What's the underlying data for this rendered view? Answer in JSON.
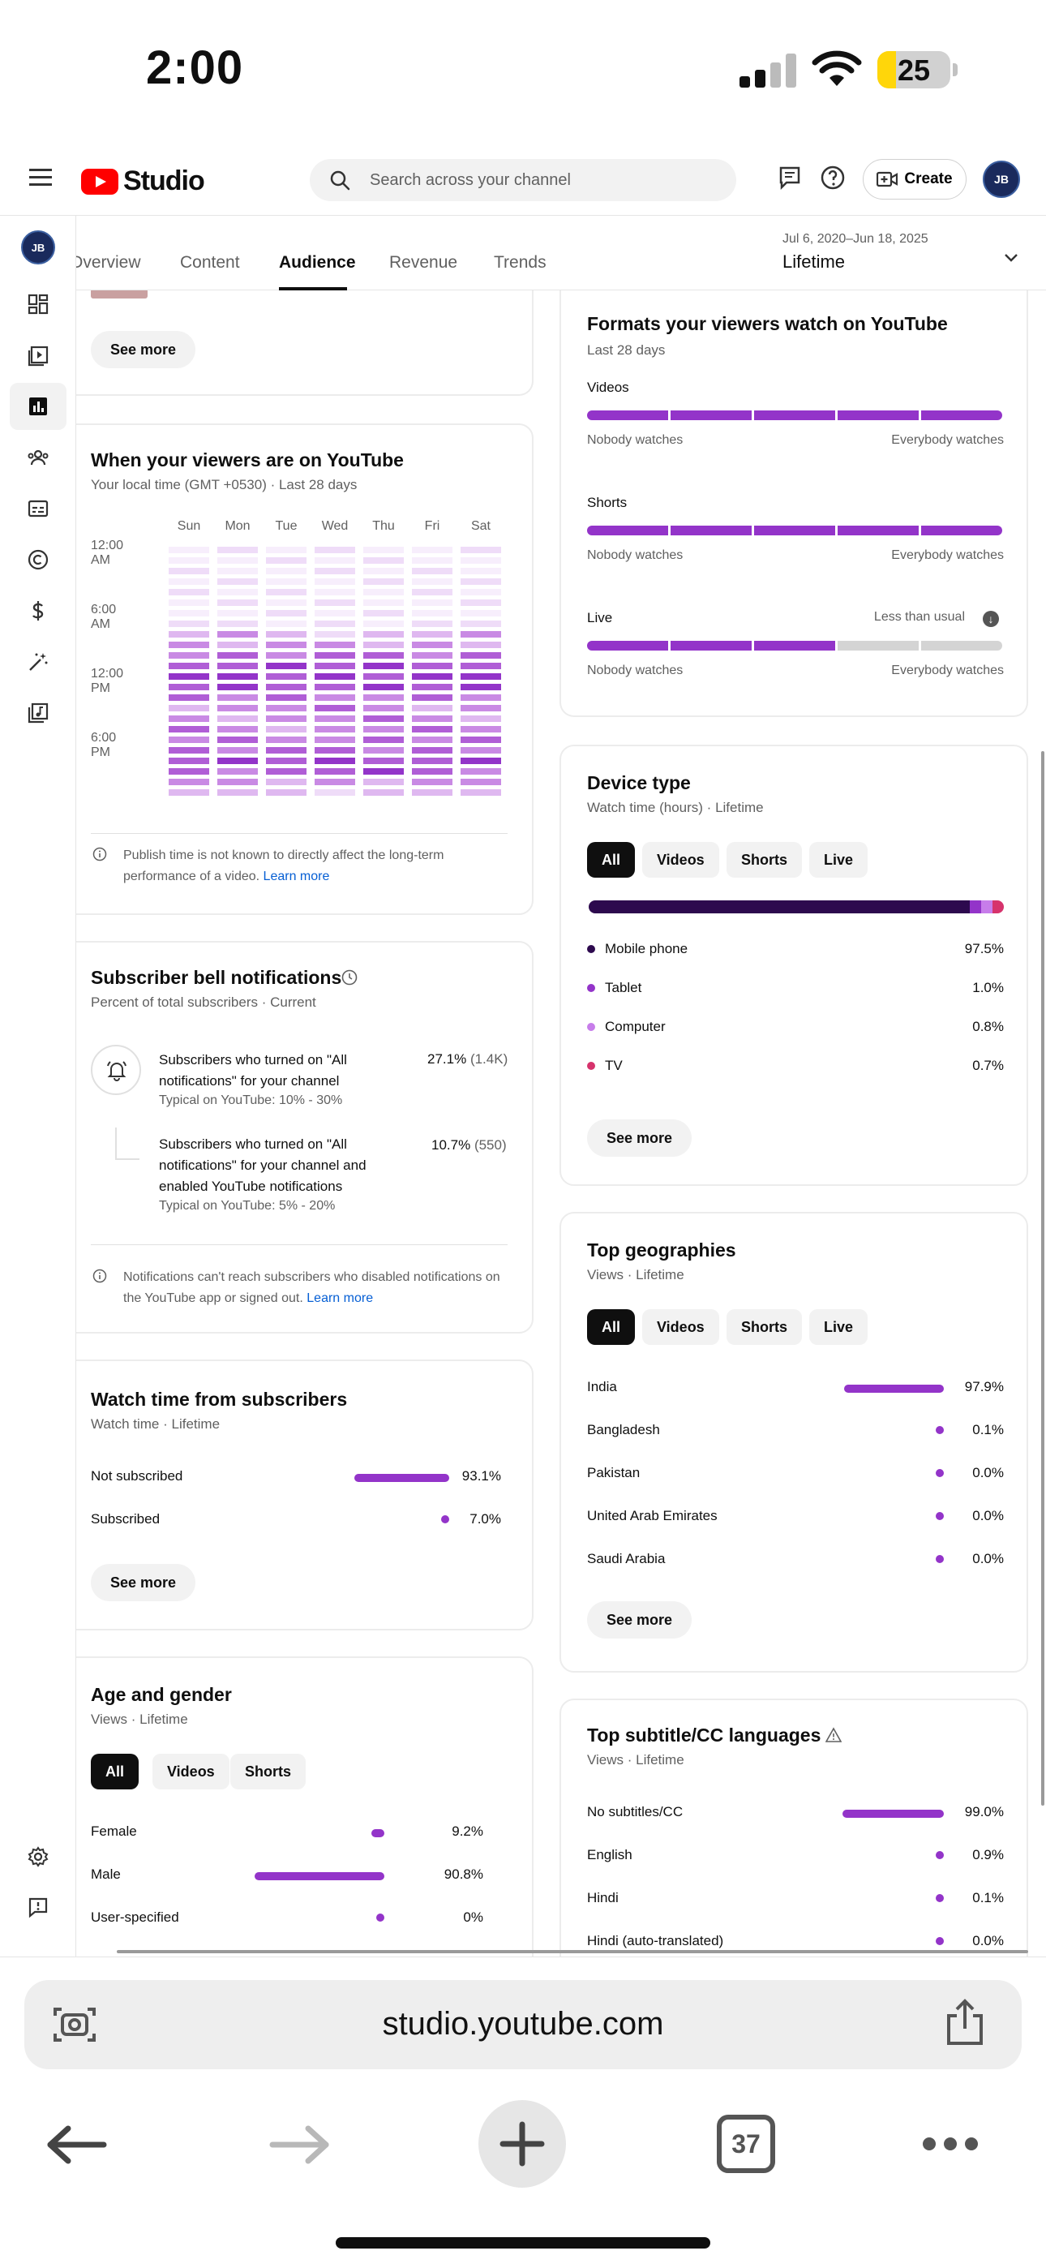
{
  "status_bar": {
    "time": "2:00",
    "battery": "25",
    "battery_level": 0.25
  },
  "header": {
    "logo_text": "Studio",
    "search_placeholder": "Search across your channel",
    "create_label": "Create",
    "avatar_initials": "JB"
  },
  "tabs": {
    "items": [
      "Overview",
      "Content",
      "Audience",
      "Revenue",
      "Trends"
    ],
    "active": "Audience",
    "date_range": "Jul 6, 2020–Jun 18, 2025",
    "date_label": "Lifetime"
  },
  "top_card": {
    "see_more": "See more"
  },
  "when_viewers": {
    "title": "When your viewers are on YouTube",
    "subtitle": "Your local time (GMT +0530) · Last 28 days",
    "days": [
      "Sun",
      "Mon",
      "Tue",
      "Wed",
      "Thu",
      "Fri",
      "Sat"
    ],
    "hours": [
      "12:00 AM",
      "6:00 AM",
      "12:00 PM",
      "6:00 PM"
    ],
    "note": "Publish time is not known to directly affect the long-term performance of a video.",
    "learn_more": "Learn more"
  },
  "bell": {
    "title": "Subscriber bell notifications",
    "subtitle": "Percent of total subscribers · Current",
    "row1_text": "Subscribers who turned on \"All notifications\" for your channel",
    "row1_typical": "Typical on YouTube: 10% - 30%",
    "row1_pct": "27.1%",
    "row1_count": "(1.4K)",
    "row2_text": "Subscribers who turned on \"All notifications\" for your channel and enabled YouTube notifications",
    "row2_typical": "Typical on YouTube: 5% - 20%",
    "row2_pct": "10.7%",
    "row2_count": "(550)",
    "note": "Notifications can't reach subscribers who disabled notifications on the YouTube app or signed out.",
    "learn_more": "Learn more"
  },
  "watch_subs": {
    "title": "Watch time from subscribers",
    "subtitle": "Watch time · Lifetime",
    "rows": [
      {
        "label": "Not subscribed",
        "value": "93.1%",
        "pct": 93.1
      },
      {
        "label": "Subscribed",
        "value": "7.0%",
        "pct": 7.0
      }
    ],
    "see_more": "See more"
  },
  "age_gender": {
    "title": "Age and gender",
    "subtitle": "Views · Lifetime",
    "chips": [
      "All",
      "Videos",
      "Shorts"
    ],
    "rows": [
      {
        "label": "Female",
        "value": "9.2%",
        "pct": 9.2
      },
      {
        "label": "Male",
        "value": "90.8%",
        "pct": 90.8
      },
      {
        "label": "User-specified",
        "value": "0%",
        "pct": 0
      }
    ]
  },
  "formats": {
    "title": "Formats your viewers watch on YouTube",
    "subtitle": "Last 28 days",
    "rows": [
      {
        "label": "Videos",
        "filled": 5,
        "note": ""
      },
      {
        "label": "Shorts",
        "filled": 5,
        "note": ""
      },
      {
        "label": "Live",
        "filled": 3,
        "note": "Less than usual"
      }
    ],
    "low": "Nobody watches",
    "high": "Everybody watches"
  },
  "device": {
    "title": "Device type",
    "subtitle": "Watch time (hours) · Lifetime",
    "chips": [
      "All",
      "Videos",
      "Shorts",
      "Live"
    ],
    "rows": [
      {
        "label": "Mobile phone",
        "value": "97.5%",
        "pct": 97.5,
        "color": "#2d0a4e"
      },
      {
        "label": "Tablet",
        "value": "1.0%",
        "pct": 1.0,
        "color": "#9334c9"
      },
      {
        "label": "Computer",
        "value": "0.8%",
        "pct": 0.8,
        "color": "#c77dea"
      },
      {
        "label": "TV",
        "value": "0.7%",
        "pct": 0.7,
        "color": "#d6336c"
      }
    ],
    "see_more": "See more"
  },
  "geo": {
    "title": "Top geographies",
    "subtitle": "Views · Lifetime",
    "chips": [
      "All",
      "Videos",
      "Shorts",
      "Live"
    ],
    "rows": [
      {
        "label": "India",
        "value": "97.9%",
        "pct": 97.9
      },
      {
        "label": "Bangladesh",
        "value": "0.1%",
        "pct": 0.1
      },
      {
        "label": "Pakistan",
        "value": "0.0%",
        "pct": 0
      },
      {
        "label": "United Arab Emirates",
        "value": "0.0%",
        "pct": 0
      },
      {
        "label": "Saudi Arabia",
        "value": "0.0%",
        "pct": 0
      }
    ],
    "see_more": "See more"
  },
  "subtitles": {
    "title": "Top subtitle/CC languages",
    "subtitle": "Views · Lifetime",
    "rows": [
      {
        "label": "No subtitles/CC",
        "value": "99.0%",
        "pct": 99.0
      },
      {
        "label": "English",
        "value": "0.9%",
        "pct": 0.9
      },
      {
        "label": "Hindi",
        "value": "0.1%",
        "pct": 0.1
      },
      {
        "label": "Hindi (auto-translated)",
        "value": "0.0%",
        "pct": 0
      }
    ]
  },
  "browser": {
    "url": "studio.youtube.com",
    "tab_count": "37"
  }
}
